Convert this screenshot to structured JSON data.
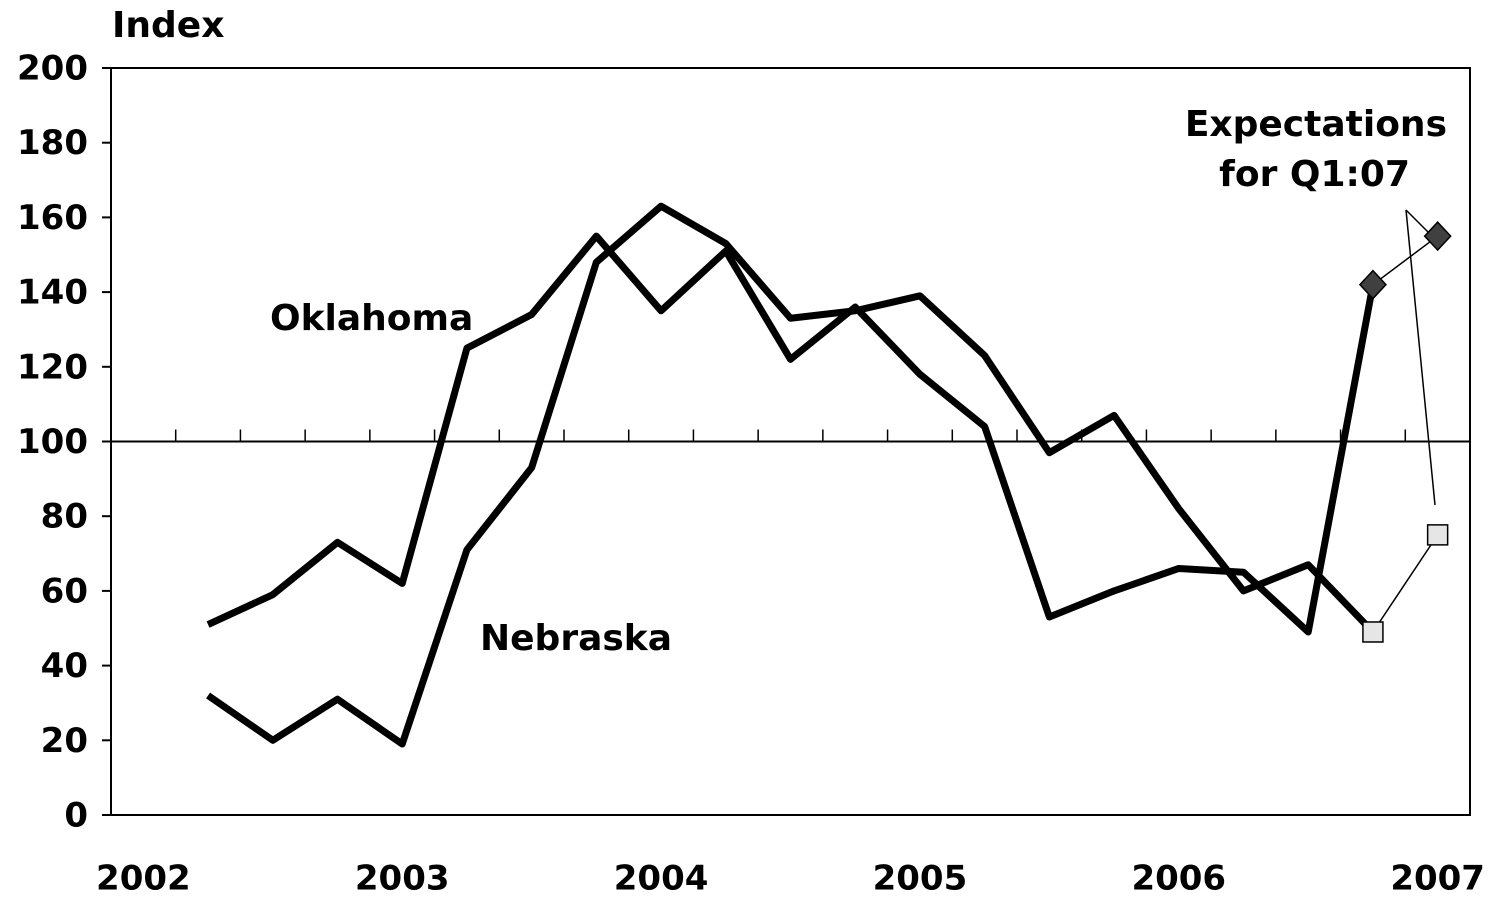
{
  "chart_data": {
    "type": "line",
    "y_label": "Index",
    "xlim": [
      2001.875,
      2007.125
    ],
    "xticks": [
      2002,
      2003,
      2004,
      2005,
      2006,
      2007
    ],
    "xminor_ticks": [
      2002.125,
      2002.375,
      2002.625,
      2002.875,
      2003.125,
      2003.375,
      2003.625,
      2003.875,
      2004.125,
      2004.375,
      2004.625,
      2004.875,
      2005.125,
      2005.375,
      2005.625,
      2005.875,
      2006.125,
      2006.375,
      2006.625,
      2006.875
    ],
    "ylim": [
      0,
      200
    ],
    "yticks": [
      0,
      20,
      40,
      60,
      80,
      100,
      120,
      140,
      160,
      180,
      200
    ],
    "reference_line": 100,
    "x": [
      2002.25,
      2002.5,
      2002.75,
      2003,
      2003.25,
      2003.5,
      2003.75,
      2004,
      2004.25,
      2004.5,
      2004.75,
      2005,
      2005.25,
      2005.5,
      2005.75,
      2006,
      2006.25,
      2006.5,
      2006.75
    ],
    "series": [
      {
        "name": "Oklahoma",
        "color": "#000000",
        "values": [
          51,
          59,
          73,
          62,
          125,
          134,
          155,
          135,
          151,
          122,
          136,
          118,
          104,
          53,
          60,
          66,
          65,
          49,
          142
        ],
        "expectations": {
          "x": [
            2006.75,
            2007
          ],
          "values": [
            142,
            155
          ],
          "marker": "diamond",
          "marker_color": "#404040"
        }
      },
      {
        "name": "Nebraska",
        "color": "#000000",
        "values": [
          32,
          20,
          31,
          19,
          71,
          93,
          148,
          163,
          153,
          133,
          135,
          139,
          123,
          97,
          107,
          82,
          60,
          67,
          49
        ],
        "expectations": {
          "x": [
            2006.75,
            2007
          ],
          "values": [
            49,
            75
          ],
          "marker": "square",
          "marker_color": "#e6e6e6"
        }
      }
    ],
    "annotation": [
      "Expectations",
      "for Q1:07"
    ]
  }
}
